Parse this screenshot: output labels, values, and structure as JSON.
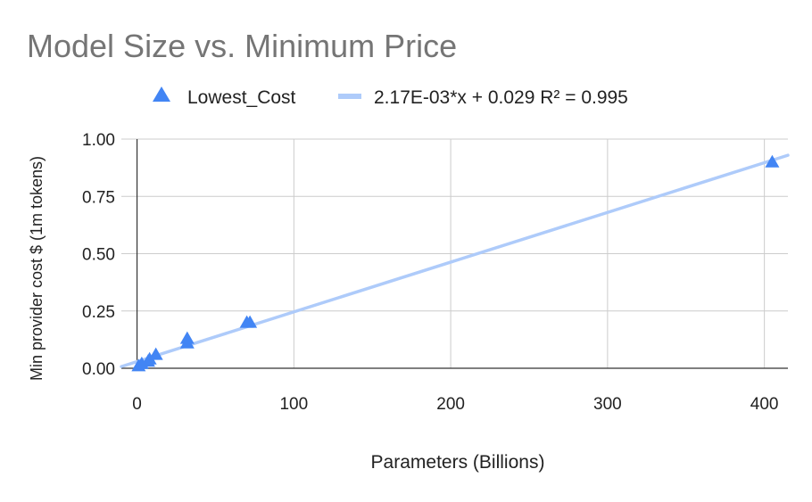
{
  "chart_data": {
    "type": "scatter",
    "title": "Model Size vs. Minimum Price",
    "xlabel": "Parameters (Billions)",
    "ylabel": "Min provider cost $ (1m tokens)",
    "xlim": [
      -10,
      415
    ],
    "ylim": [
      0,
      1.0
    ],
    "x_ticks": [
      0,
      100,
      200,
      300,
      400
    ],
    "x_tick_labels": [
      "0",
      "100",
      "200",
      "300",
      "400"
    ],
    "y_ticks": [
      0,
      0.25,
      0.5,
      0.75,
      1.0
    ],
    "y_tick_labels": [
      "0.00",
      "0.25",
      "0.50",
      "0.75",
      "1.00"
    ],
    "grid": true,
    "legend_position": "top",
    "series": [
      {
        "name": "Lowest_Cost",
        "marker": "triangle",
        "color": "#4285f4",
        "points": [
          {
            "x": 1,
            "y": 0.01
          },
          {
            "x": 3,
            "y": 0.02
          },
          {
            "x": 7,
            "y": 0.03
          },
          {
            "x": 8,
            "y": 0.04
          },
          {
            "x": 12,
            "y": 0.06
          },
          {
            "x": 32,
            "y": 0.11
          },
          {
            "x": 32,
            "y": 0.13
          },
          {
            "x": 70,
            "y": 0.2
          },
          {
            "x": 72,
            "y": 0.2
          },
          {
            "x": 405,
            "y": 0.9
          }
        ]
      }
    ],
    "trendline": {
      "label": "2.17E-03*x + 0.029 R² = 0.995",
      "slope": 0.00217,
      "intercept": 0.029,
      "color": "#aecbfa"
    }
  }
}
